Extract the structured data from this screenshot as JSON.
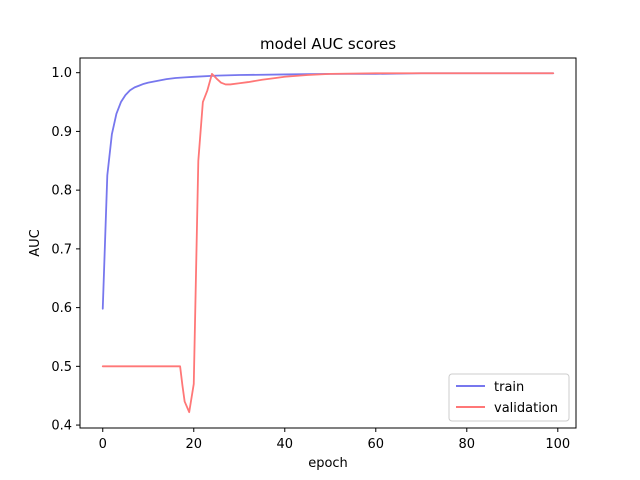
{
  "chart_data": {
    "type": "line",
    "title": "model AUC scores",
    "xlabel": "epoch",
    "ylabel": "AUC",
    "xlim": [
      -5,
      104
    ],
    "ylim": [
      0.395,
      1.025
    ],
    "xticks": [
      0,
      20,
      40,
      60,
      80,
      100
    ],
    "yticks": [
      0.4,
      0.5,
      0.6,
      0.7,
      0.8,
      0.9,
      1.0
    ],
    "ytick_labels": [
      "0.4",
      "0.5",
      "0.6",
      "0.7",
      "0.8",
      "0.9",
      "1.0"
    ],
    "grid": false,
    "legend_position": "lower-right",
    "series": [
      {
        "name": "train",
        "color": "#7777ee",
        "x": [
          0,
          1,
          2,
          3,
          4,
          5,
          6,
          7,
          8,
          9,
          10,
          12,
          14,
          16,
          18,
          20,
          25,
          30,
          40,
          50,
          60,
          70,
          80,
          90,
          99
        ],
        "y": [
          0.598,
          0.825,
          0.895,
          0.93,
          0.95,
          0.962,
          0.97,
          0.975,
          0.978,
          0.981,
          0.983,
          0.986,
          0.989,
          0.991,
          0.992,
          0.993,
          0.995,
          0.996,
          0.997,
          0.998,
          0.998,
          0.999,
          0.999,
          0.999,
          0.999
        ]
      },
      {
        "name": "validation",
        "color": "#ff7777",
        "x": [
          0,
          5,
          10,
          15,
          16,
          17,
          17.5,
          18,
          19,
          20,
          21,
          22,
          23,
          24,
          25,
          26,
          27,
          28,
          30,
          32,
          35,
          38,
          40,
          45,
          50,
          60,
          70,
          80,
          90,
          99
        ],
        "y": [
          0.5,
          0.5,
          0.5,
          0.5,
          0.5,
          0.5,
          0.468,
          0.44,
          0.422,
          0.47,
          0.85,
          0.95,
          0.97,
          0.998,
          0.99,
          0.983,
          0.98,
          0.98,
          0.982,
          0.984,
          0.988,
          0.991,
          0.993,
          0.996,
          0.998,
          0.999,
          0.999,
          0.999,
          0.999,
          0.999
        ]
      }
    ]
  }
}
